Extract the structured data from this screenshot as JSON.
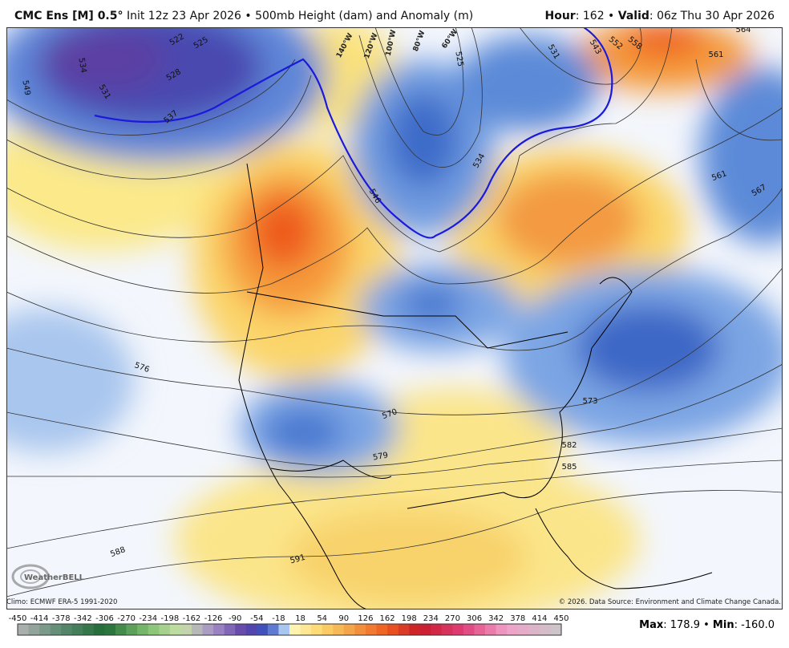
{
  "header": {
    "model": "CMC Ens [M] 0.5°",
    "description": "Init 12z 23 Apr 2026 • 500mb Height (dam) and Anomaly (m)",
    "hour_label": "Hour",
    "hour_value": ": 162 • ",
    "valid_label": "Valid",
    "valid_value": ": 06z Thu 30 Apr 2026"
  },
  "map": {
    "longitude_labels": [
      "140°W",
      "120°W",
      "100°W",
      "80°W",
      "60°W"
    ],
    "contour_labels": [
      "534",
      "522",
      "525",
      "528",
      "531",
      "549",
      "537",
      "525",
      "531",
      "543",
      "552",
      "558",
      "564",
      "561",
      "561",
      "567",
      "546",
      "534",
      "576",
      "570",
      "573",
      "579",
      "582",
      "585",
      "588",
      "591"
    ],
    "logo": "WeatherBELL"
  },
  "footer": {
    "climo": "Climo: ECMWF ERA-5 1991-2020",
    "copyright": "© 2026. Data Source: Environment and Climate Change Canada.",
    "colorbar_labels": [
      "-450",
      "-414",
      "-378",
      "-342",
      "-306",
      "-270",
      "-234",
      "-198",
      "-162",
      "-126",
      "-90",
      "-54",
      "-18",
      "18",
      "54",
      "90",
      "126",
      "162",
      "198",
      "234",
      "270",
      "306",
      "342",
      "378",
      "414",
      "450"
    ],
    "max_label": "Max",
    "max_value": ": 178.9 • ",
    "min_label": "Min",
    "min_value": ": -160.0"
  }
}
